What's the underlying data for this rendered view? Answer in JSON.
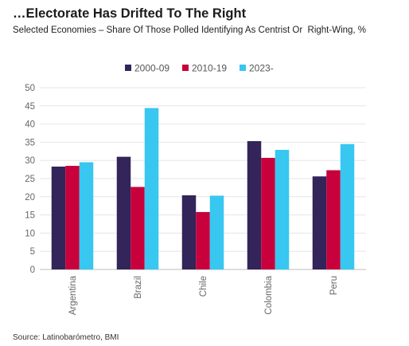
{
  "title": "…Electorate Has Drifted To The Right",
  "subtitle": "Selected Economies – Share Of Those Polled Identifying As Centrist Or  Right-Wing, %",
  "source": "Source: Latinobarómetro, BMI",
  "chart_data": {
    "type": "bar",
    "categories": [
      "Argentina",
      "Brazil",
      "Chile",
      "Colombia",
      "Peru"
    ],
    "series": [
      {
        "name": "2000-09",
        "color": "#33245a",
        "values": [
          28.3,
          31.0,
          20.4,
          35.3,
          25.6
        ]
      },
      {
        "name": "2010-19",
        "color": "#c8003c",
        "values": [
          28.5,
          22.7,
          15.8,
          30.7,
          27.3
        ]
      },
      {
        "name": "2023-",
        "color": "#38c7f0",
        "values": [
          29.5,
          44.4,
          20.3,
          32.9,
          34.5
        ]
      }
    ],
    "ylim": [
      0,
      50
    ],
    "yticks": [
      0,
      5,
      10,
      15,
      20,
      25,
      30,
      35,
      40,
      45,
      50
    ],
    "grid": true,
    "legend": "top-center"
  }
}
